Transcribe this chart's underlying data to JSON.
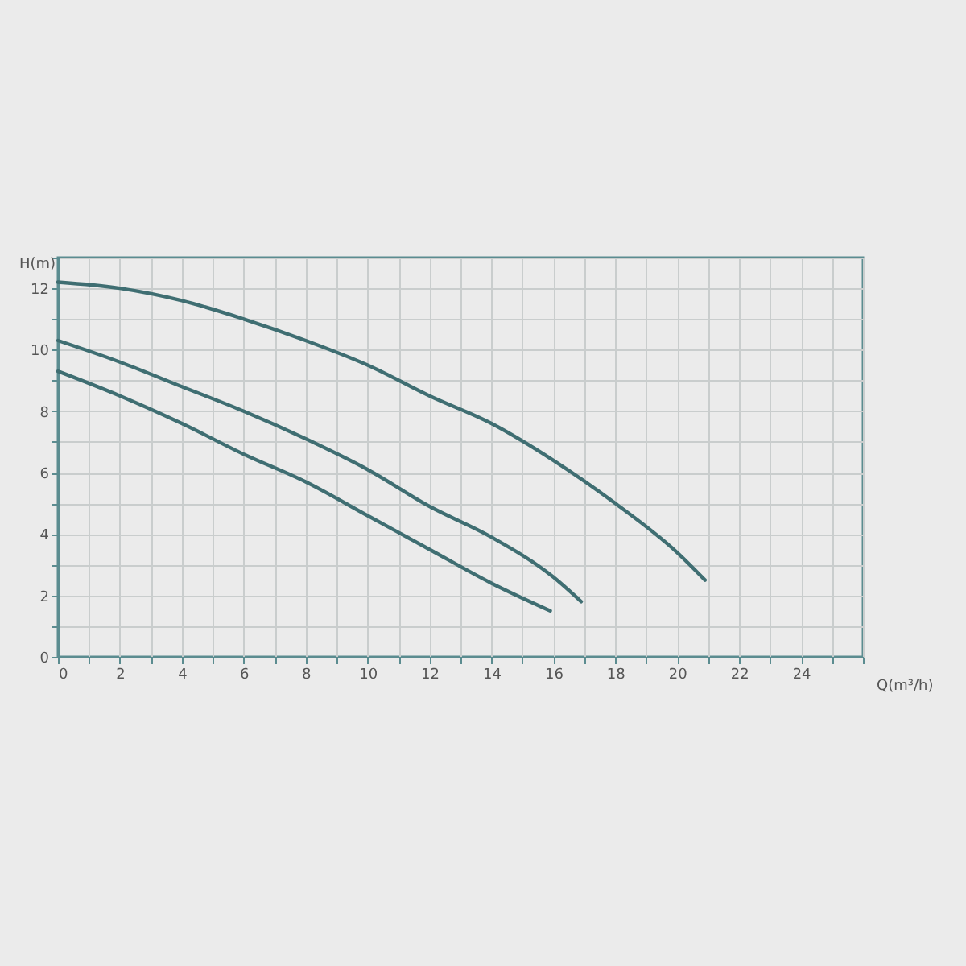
{
  "chart_data": {
    "type": "line",
    "xlabel": "Q(m³/h)",
    "ylabel": "H(m)",
    "xlim": [
      0,
      26
    ],
    "ylim": [
      0,
      13
    ],
    "xticks": [
      0,
      {
        "value": 1,
        "label": null
      },
      2,
      {
        "value": 3,
        "label": null
      },
      4,
      {
        "value": 5,
        "label": null
      },
      6,
      {
        "value": 7,
        "label": null
      },
      8,
      {
        "value": 9,
        "label": null
      },
      10,
      {
        "value": 11,
        "label": null
      },
      12,
      {
        "value": 13,
        "label": null
      },
      14,
      {
        "value": 15,
        "label": null
      },
      16,
      {
        "value": 17,
        "label": null
      },
      18,
      {
        "value": 19,
        "label": null
      },
      20,
      {
        "value": 21,
        "label": null
      },
      22,
      {
        "value": 23,
        "label": null
      },
      24,
      {
        "value": 25,
        "label": null
      },
      {
        "value": 26,
        "label": null
      }
    ],
    "yticks": [
      0,
      {
        "value": 1,
        "label": null
      },
      2,
      {
        "value": 3,
        "label": null
      },
      4,
      {
        "value": 5,
        "label": null
      },
      6,
      {
        "value": 7,
        "label": null
      },
      8,
      {
        "value": 9,
        "label": null
      },
      10,
      {
        "value": 11,
        "label": null
      },
      12,
      {
        "value": 13,
        "label": null
      }
    ],
    "grid": true,
    "line_style": "solid",
    "series": [
      {
        "color": "#3f6e72",
        "x": [
          0,
          2,
          4,
          6,
          8,
          10,
          12,
          14,
          16,
          18,
          20,
          20.9
        ],
        "values": [
          12.2,
          12.0,
          11.6,
          11.0,
          10.3,
          9.5,
          8.5,
          7.6,
          6.4,
          5.0,
          3.4,
          2.5
        ]
      },
      {
        "color": "#3f6e72",
        "x": [
          0,
          2,
          4,
          6,
          8,
          10,
          12,
          14,
          16,
          16.9
        ],
        "values": [
          10.3,
          9.6,
          8.8,
          8.0,
          7.1,
          6.1,
          4.9,
          3.9,
          2.6,
          1.8
        ]
      },
      {
        "color": "#3f6e72",
        "x": [
          0,
          2,
          4,
          6,
          8,
          10,
          12,
          14,
          15.9
        ],
        "values": [
          9.3,
          8.5,
          7.6,
          6.6,
          5.7,
          4.6,
          3.5,
          2.4,
          1.5
        ]
      }
    ]
  }
}
